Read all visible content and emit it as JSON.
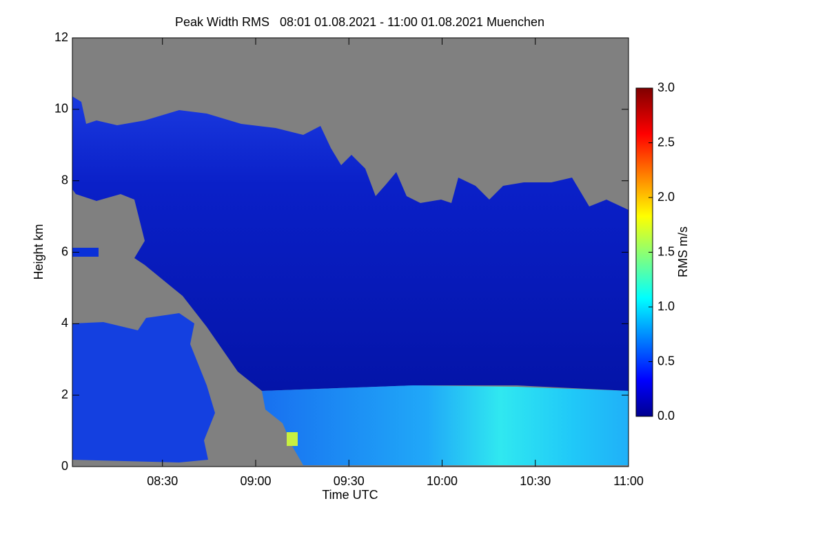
{
  "chart_data": {
    "type": "heatmap",
    "title": "Peak Width RMS   08:01 01.08.2021 - 11:00 01.08.2021 Muenchen",
    "x_label": "Time UTC",
    "y_label": "Height km",
    "colorbar_label": "RMS m/s",
    "xlim": [
      481,
      660
    ],
    "xticks": [
      {
        "value": 510,
        "label": "08:30"
      },
      {
        "value": 540,
        "label": "09:00"
      },
      {
        "value": 570,
        "label": "09:30"
      },
      {
        "value": 600,
        "label": "10:00"
      },
      {
        "value": 630,
        "label": "10:30"
      },
      {
        "value": 660,
        "label": "11:00"
      }
    ],
    "ylim": [
      0,
      12
    ],
    "yticks": [
      0,
      2,
      4,
      6,
      8,
      10,
      12
    ],
    "clim": [
      0,
      3
    ],
    "cticks": [
      {
        "value": 0,
        "label": "0.0"
      },
      0.5,
      {
        "value": 1,
        "label": "1.0"
      },
      1.5,
      {
        "value": 2,
        "label": "2.0"
      },
      2.5,
      {
        "value": 3,
        "label": "3.0"
      }
    ]
  }
}
